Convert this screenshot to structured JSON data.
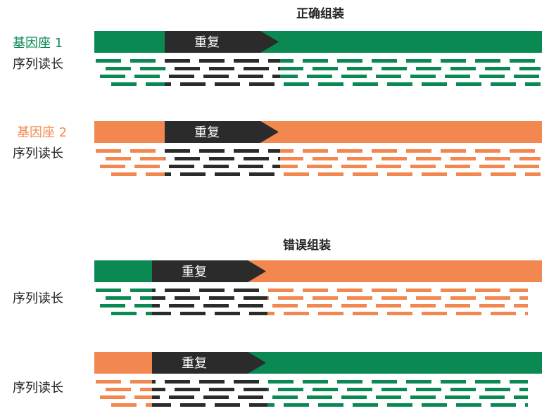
{
  "colors": {
    "green": "#0a8a52",
    "orange": "#f2884f",
    "dark": "#2b2b2b"
  },
  "correct_assembly": {
    "title": "正确组装",
    "locus1": {
      "name": "基因座 1",
      "reads_label": "序列读长",
      "repeat_label": "重复"
    },
    "locus2": {
      "name": "基因座 2",
      "reads_label": "序列读长",
      "repeat_label": "重复"
    }
  },
  "wrong_assembly": {
    "title": "错误组装",
    "contig1": {
      "reads_label": "序列读长",
      "repeat_label": "重复"
    },
    "contig2": {
      "reads_label": "序列读长",
      "repeat_label": "重复"
    }
  }
}
